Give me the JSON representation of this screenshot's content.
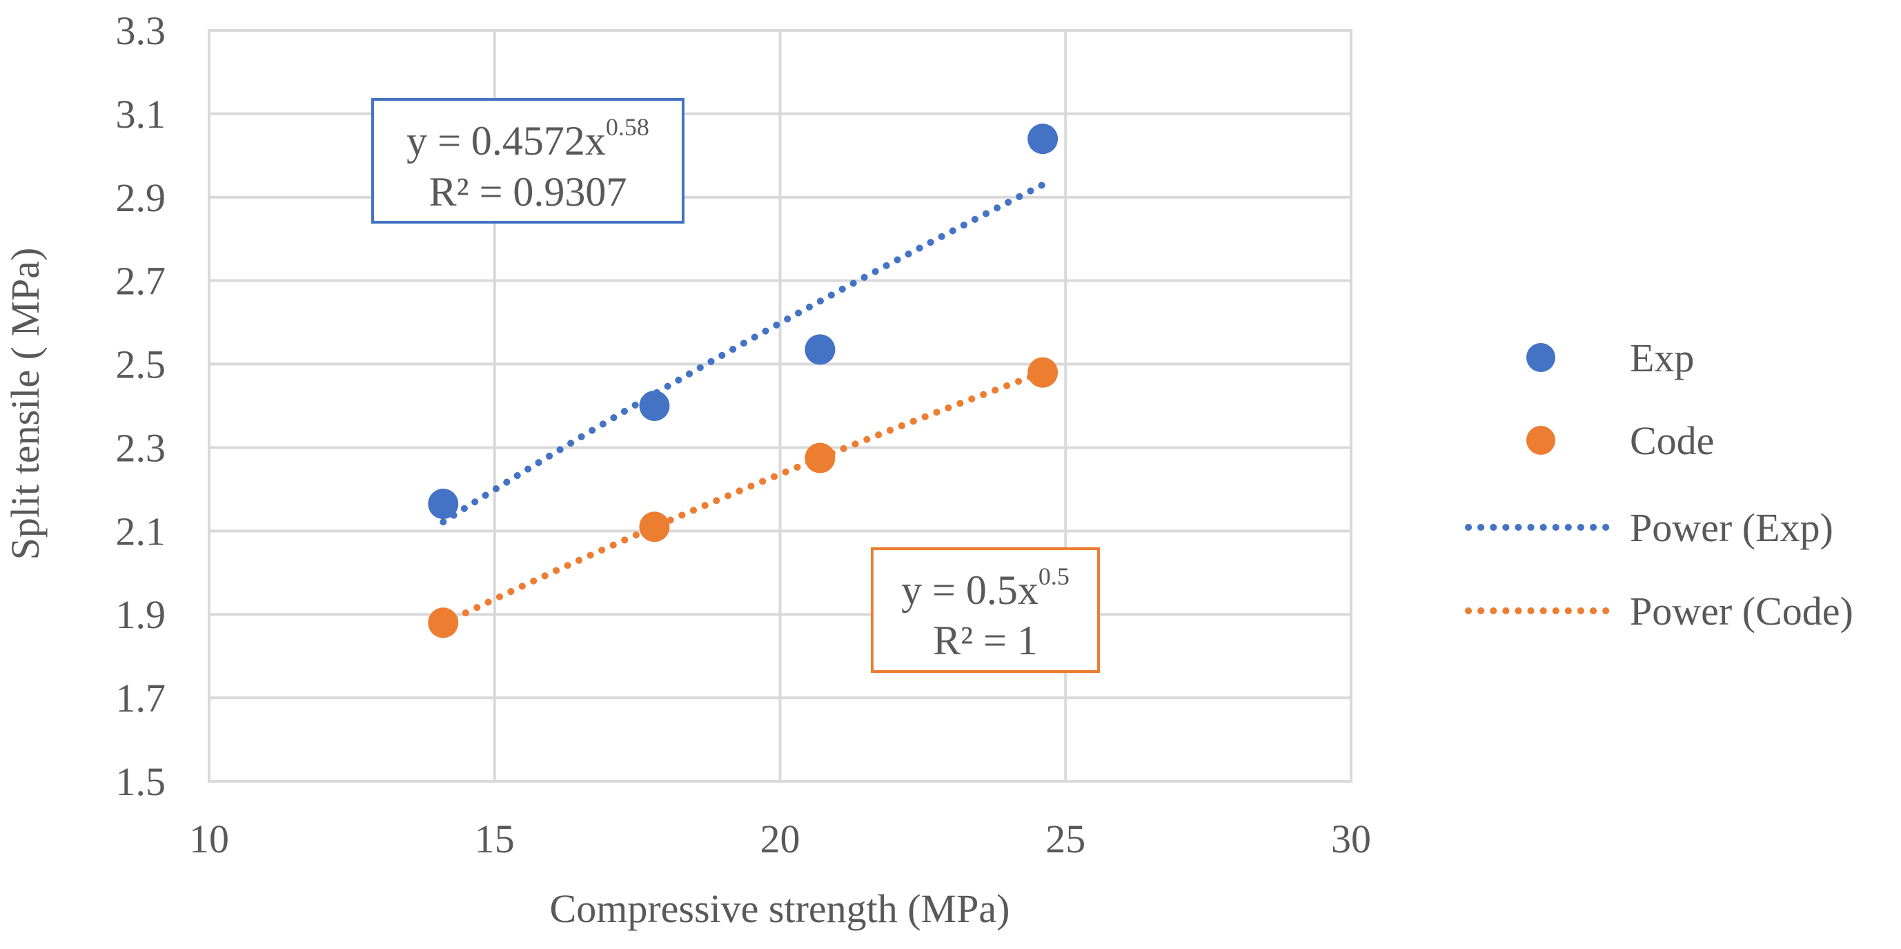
{
  "chart_data": {
    "type": "scatter",
    "xlabel": "Compressive strength (MPa)",
    "ylabel": "Split tensile ( MPa)",
    "xlim": [
      10,
      30
    ],
    "ylim": [
      1.5,
      3.3
    ],
    "xticks": [
      "10",
      "15",
      "20",
      "25",
      "30"
    ],
    "yticks": [
      "1.5",
      "1.7",
      "1.9",
      "2.1",
      "2.3",
      "2.5",
      "2.7",
      "2.9",
      "3.1",
      "3.3"
    ],
    "grid": true,
    "legend_position": "right",
    "series": [
      {
        "name": "Exp",
        "color": "#4472C4",
        "x": [
          14.1,
          17.8,
          20.7,
          24.6
        ],
        "y": [
          2.165,
          2.4,
          2.535,
          3.04
        ],
        "trendline": {
          "name": "Power (Exp)",
          "type": "power",
          "coef": 0.4572,
          "exp": 0.58,
          "x_range": [
            14.1,
            24.6
          ],
          "equation": "y = 0.4572x",
          "exponent_label": "0.58",
          "r2": "R² = 0.9307"
        }
      },
      {
        "name": "Code",
        "color": "#ED7D31",
        "x": [
          14.1,
          17.8,
          20.7,
          24.6
        ],
        "y": [
          1.88,
          2.11,
          2.275,
          2.48
        ],
        "trendline": {
          "name": "Power (Code)",
          "type": "power",
          "coef": 0.5,
          "exp": 0.5,
          "x_range": [
            14.1,
            24.6
          ],
          "equation": "y = 0.5x",
          "exponent_label": "0.5",
          "r2": "R² = 1"
        }
      }
    ]
  }
}
